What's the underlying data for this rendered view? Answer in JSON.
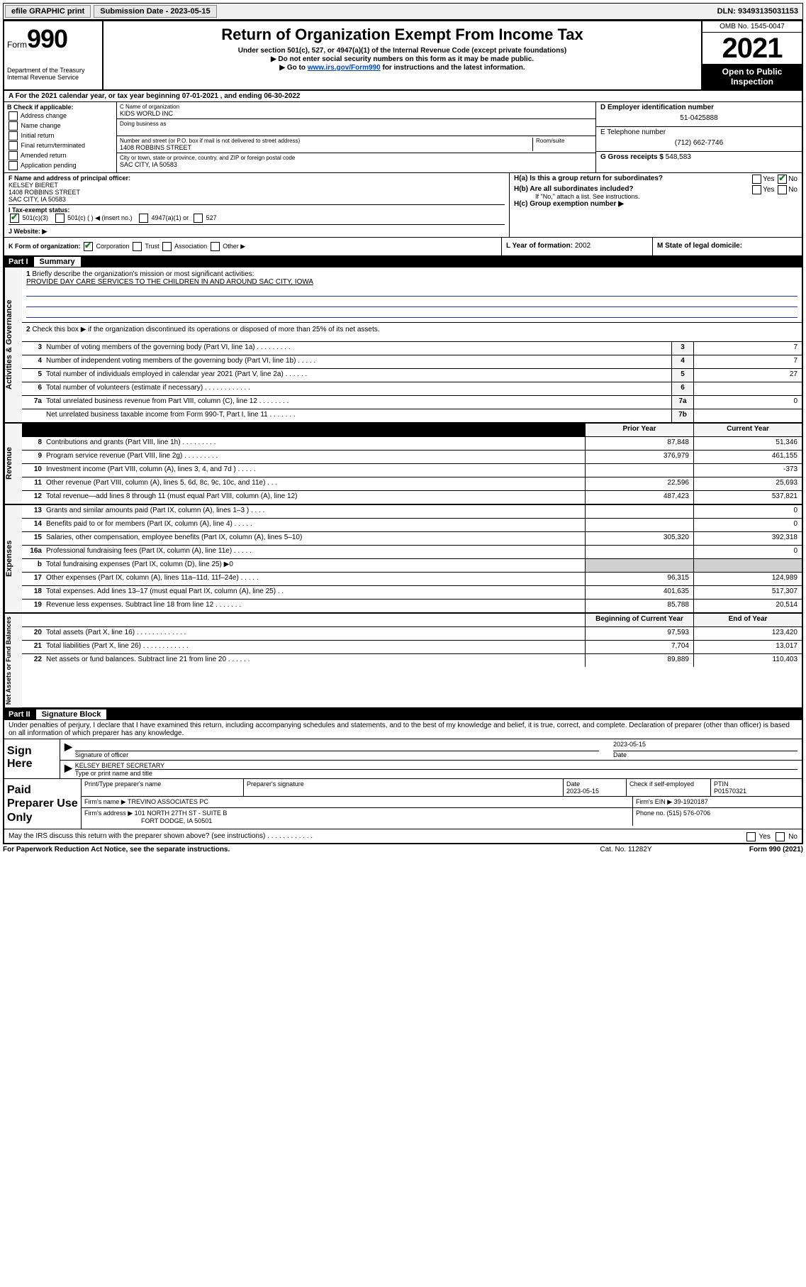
{
  "topbar": {
    "efile": "efile GRAPHIC print",
    "submission_label": "Submission Date - 2023-05-15",
    "dln": "DLN: 93493135031153"
  },
  "header": {
    "form_prefix": "Form",
    "form_number": "990",
    "title": "Return of Organization Exempt From Income Tax",
    "sub1": "Under section 501(c), 527, or 4947(a)(1) of the Internal Revenue Code (except private foundations)",
    "sub2": "▶ Do not enter social security numbers on this form as it may be made public.",
    "sub3_pre": "▶ Go to ",
    "sub3_link": "www.irs.gov/Form990",
    "sub3_post": " for instructions and the latest information.",
    "dept": "Department of the Treasury",
    "irs": "Internal Revenue Service",
    "omb": "OMB No. 1545-0047",
    "year": "2021",
    "open": "Open to Public Inspection"
  },
  "section_a": {
    "text_pre": "A For the 2021 calendar year, or tax year beginning ",
    "begin": "07-01-2021",
    "mid": " , and ending ",
    "end": "06-30-2022"
  },
  "block_b": {
    "label": "B Check if applicable:",
    "items": [
      "Address change",
      "Name change",
      "Initial return",
      "Final return/terminated",
      "Amended return",
      "Application pending"
    ]
  },
  "block_c": {
    "name_label": "C Name of organization",
    "name": "KIDS WORLD INC",
    "dba_label": "Doing business as",
    "addr_label": "Number and street (or P.O. box if mail is not delivered to street address)",
    "room_label": "Room/suite",
    "addr": "1408 ROBBINS STREET",
    "city_label": "City or town, state or province, country, and ZIP or foreign postal code",
    "city": "SAC CITY, IA  50583"
  },
  "block_d": {
    "label": "D Employer identification number",
    "ein": "51-0425888"
  },
  "block_e": {
    "label": "E Telephone number",
    "phone": "(712) 662-7746"
  },
  "block_g": {
    "label": "G Gross receipts $ ",
    "amount": "548,583"
  },
  "block_f": {
    "label": "F  Name and address of principal officer:",
    "name": "KELSEY BIERET",
    "addr1": "1408 ROBBINS STREET",
    "addr2": "SAC CITY, IA  50583"
  },
  "block_h": {
    "ha": "H(a)  Is this a group return for subordinates?",
    "hb": "H(b)  Are all subordinates included?",
    "hb_note": "If \"No,\" attach a list. See instructions.",
    "hc": "H(c)  Group exemption number ▶",
    "yes": "Yes",
    "no": "No"
  },
  "block_i": {
    "label": "I   Tax-exempt status:",
    "c3": "501(c)(3)",
    "c": "501(c) (    ) ◀ (insert no.)",
    "a1": "4947(a)(1) or",
    "s527": "527"
  },
  "block_j": {
    "label": "J   Website: ▶"
  },
  "block_k": {
    "label": "K Form of organization:",
    "corp": "Corporation",
    "trust": "Trust",
    "assoc": "Association",
    "other": "Other ▶"
  },
  "block_l": {
    "label": "L Year of formation: ",
    "year": "2002"
  },
  "block_m": {
    "label": "M State of legal domicile:"
  },
  "part1": {
    "hdr": "Part I",
    "title": "Summary",
    "q1_label": "1",
    "q1": "Briefly describe the organization's mission or most significant activities:",
    "mission": "PROVIDE DAY CARE SERVICES TO THE CHILDREN IN AND AROUND SAC CITY, IOWA",
    "q2_label": "2",
    "q2": "Check this box ▶     if the organization discontinued its operations or disposed of more than 25% of its net assets.",
    "rows_gov": [
      {
        "n": "3",
        "d": "Number of voting members of the governing body (Part VI, line 1a)   .    .    .    .    .    .    .    .    .",
        "box": "3",
        "v": "7"
      },
      {
        "n": "4",
        "d": "Number of independent voting members of the governing body (Part VI, line 1b)   .    .    .    .    .",
        "box": "4",
        "v": "7"
      },
      {
        "n": "5",
        "d": "Total number of individuals employed in calendar year 2021 (Part V, line 2a)   .    .    .    .    .    .",
        "box": "5",
        "v": "27"
      },
      {
        "n": "6",
        "d": "Total number of volunteers (estimate if necessary)   .    .    .    .    .    .    .    .    .    .    .    .",
        "box": "6",
        "v": ""
      },
      {
        "n": "7a",
        "d": "Total unrelated business revenue from Part VIII, column (C), line 12   .    .    .    .    .    .    .    .",
        "box": "7a",
        "v": "0"
      },
      {
        "n": "",
        "d": "Net unrelated business taxable income from Form 990-T, Part I, line 11   .    .    .    .    .    .    .",
        "box": "7b",
        "v": ""
      }
    ],
    "col_prior": "Prior Year",
    "col_current": "Current Year",
    "rows_rev": [
      {
        "n": "8",
        "d": "Contributions and grants (Part VIII, line 1h)   .    .    .    .    .    .    .    .    .",
        "p": "87,848",
        "c": "51,346"
      },
      {
        "n": "9",
        "d": "Program service revenue (Part VIII, line 2g)   .    .    .    .    .    .    .    .    .",
        "p": "376,979",
        "c": "461,155"
      },
      {
        "n": "10",
        "d": "Investment income (Part VIII, column (A), lines 3, 4, and 7d )   .    .    .    .    .",
        "p": "",
        "c": "-373"
      },
      {
        "n": "11",
        "d": "Other revenue (Part VIII, column (A), lines 5, 6d, 8c, 9c, 10c, and 11e)   .    .    .",
        "p": "22,596",
        "c": "25,693"
      },
      {
        "n": "12",
        "d": "Total revenue—add lines 8 through 11 (must equal Part VIII, column (A), line 12)",
        "p": "487,423",
        "c": "537,821"
      }
    ],
    "rows_exp": [
      {
        "n": "13",
        "d": "Grants and similar amounts paid (Part IX, column (A), lines 1–3 )   .    .    .    .",
        "p": "",
        "c": "0"
      },
      {
        "n": "14",
        "d": "Benefits paid to or for members (Part IX, column (A), line 4)   .    .    .    .    .",
        "p": "",
        "c": "0"
      },
      {
        "n": "15",
        "d": "Salaries, other compensation, employee benefits (Part IX, column (A), lines 5–10)",
        "p": "305,320",
        "c": "392,318"
      },
      {
        "n": "16a",
        "d": "Professional fundraising fees (Part IX, column (A), line 11e)   .    .    .    .    .",
        "p": "",
        "c": "0"
      },
      {
        "n": "b",
        "d": "Total fundraising expenses (Part IX, column (D), line 25) ▶0",
        "p": "GREY",
        "c": "GREY"
      },
      {
        "n": "17",
        "d": "Other expenses (Part IX, column (A), lines 11a–11d, 11f–24e)   .    .    .    .    .",
        "p": "96,315",
        "c": "124,989"
      },
      {
        "n": "18",
        "d": "Total expenses. Add lines 13–17 (must equal Part IX, column (A), line 25)   .    .",
        "p": "401,635",
        "c": "517,307"
      },
      {
        "n": "19",
        "d": "Revenue less expenses. Subtract line 18 from line 12   .    .    .    .    .    .    .",
        "p": "85,788",
        "c": "20,514"
      }
    ],
    "col_begin": "Beginning of Current Year",
    "col_end": "End of Year",
    "rows_net": [
      {
        "n": "20",
        "d": "Total assets (Part X, line 16)   .    .    .    .    .    .    .    .    .    .    .    .    .",
        "p": "97,593",
        "c": "123,420"
      },
      {
        "n": "21",
        "d": "Total liabilities (Part X, line 26)   .    .    .    .    .    .    .    .    .    .    .    .",
        "p": "7,704",
        "c": "13,017"
      },
      {
        "n": "22",
        "d": "Net assets or fund balances. Subtract line 21 from line 20   .    .    .    .    .    .",
        "p": "89,889",
        "c": "110,403"
      }
    ],
    "side_gov": "Activities & Governance",
    "side_rev": "Revenue",
    "side_exp": "Expenses",
    "side_net": "Net Assets or Fund Balances"
  },
  "part2": {
    "hdr": "Part II",
    "title": "Signature Block",
    "declare": "Under penalties of perjury, I declare that I have examined this return, including accompanying schedules and statements, and to the best of my knowledge and belief, it is true, correct, and complete. Declaration of preparer (other than officer) is based on all information of which preparer has any knowledge.",
    "sign_here": "Sign Here",
    "sig_officer": "Signature of officer",
    "sig_date_label": "Date",
    "sig_date": "2023-05-15",
    "officer_name": "KELSEY BIERET  SECRETARY",
    "type_name": "Type or print name and title",
    "paid": "Paid Preparer Use Only",
    "prep_name_label": "Print/Type preparer's name",
    "prep_sig_label": "Preparer's signature",
    "prep_date_label": "Date",
    "prep_date": "2023-05-15",
    "prep_check": "Check      if self-employed",
    "ptin_label": "PTIN",
    "ptin": "P01570321",
    "firm_name_label": "Firm's name     ▶",
    "firm_name": "TREVINO ASSOCIATES PC",
    "firm_ein_label": "Firm's EIN ▶",
    "firm_ein": "39-1920187",
    "firm_addr_label": "Firm's address ▶",
    "firm_addr1": "101 NORTH 27TH ST - SUITE B",
    "firm_addr2": "FORT DODGE, IA  50501",
    "phone_label": "Phone no. ",
    "phone": "(515) 576-0706",
    "may_irs": "May the IRS discuss this return with the preparer shown above? (see instructions)   .    .    .    .    .    .    .    .    .    .    .    .",
    "yes": "Yes",
    "no": "No"
  },
  "footer": {
    "left": "For Paperwork Reduction Act Notice, see the separate instructions.",
    "mid": "Cat. No. 11282Y",
    "right": "Form 990 (2021)"
  }
}
